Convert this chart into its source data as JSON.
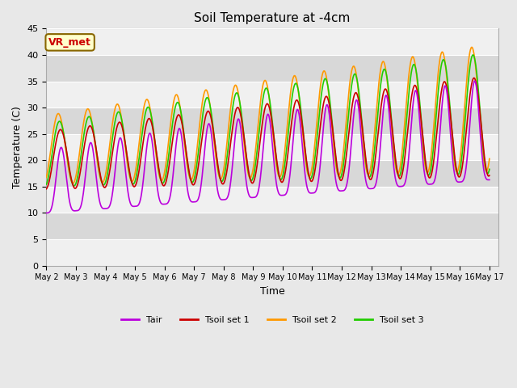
{
  "title": "Soil Temperature at -4cm",
  "xlabel": "Time",
  "ylabel": "Temperature (C)",
  "ylim": [
    0,
    45
  ],
  "xlim_days": [
    1.0,
    16.3
  ],
  "x_tick_labels": [
    "May 2",
    "May 3",
    "May 4",
    "May 5",
    "May 6",
    "May 7",
    "May 8",
    "May 9",
    "May 10",
    "May 11",
    "May 12",
    "May 13",
    "May 14",
    "May 15",
    "May 16",
    "May 17"
  ],
  "yticks": [
    0,
    5,
    10,
    15,
    20,
    25,
    30,
    35,
    40,
    45
  ],
  "colors": {
    "Tair": "#bb00dd",
    "Tsoil1": "#cc0000",
    "Tsoil2": "#ff9900",
    "Tsoil3": "#22cc00"
  },
  "legend_labels": [
    "Tair",
    "Tsoil set 1",
    "Tsoil set 2",
    "Tsoil set 3"
  ],
  "annotation_text": "VR_met",
  "annotation_color": "#cc0000",
  "annotation_bg": "#ffffcc",
  "annotation_border": "#886600",
  "bg_color": "#e8e8e8",
  "stripe_light": "#f0f0f0",
  "stripe_dark": "#d8d8d8",
  "line_width": 1.2,
  "n_points": 1440,
  "period_days": 1.0
}
